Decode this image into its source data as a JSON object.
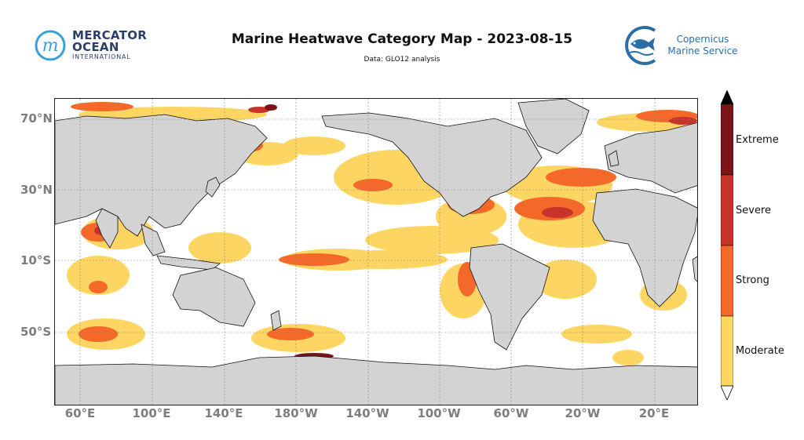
{
  "header": {
    "title": "Marine Heatwave Category Map - 2023-08-15",
    "subtitle": "Data: GLO12 analysis"
  },
  "logos": {
    "mercator": {
      "line1": "MERCATOR",
      "line2": "OCEAN",
      "line3": "INTERNATIONAL",
      "mark": "m",
      "color": "#2c3f6b",
      "accent": "#3aa0d8"
    },
    "copernicus": {
      "line1": "Copernicus",
      "line2": "Marine Service",
      "color": "#2b6ea6",
      "icon": "fish-icon"
    }
  },
  "map": {
    "land_color": "#d3d3d3",
    "ocean_color": "#ffffff",
    "grid": true,
    "lat_labels": [
      "70°N",
      "30°N",
      "10°S",
      "50°S"
    ],
    "lon_labels": [
      "60°E",
      "100°E",
      "140°E",
      "180°W",
      "140°W",
      "100°W",
      "60°W",
      "20°W",
      "20°E"
    ]
  },
  "legend": {
    "categories": [
      {
        "label": "Extreme",
        "color": "#7a1417"
      },
      {
        "label": "Severe",
        "color": "#c7322a"
      },
      {
        "label": "Strong",
        "color": "#f4692a"
      },
      {
        "label": "Moderate",
        "color": "#fdd562"
      }
    ],
    "over_color": "#000000",
    "under_color": "#ffffff"
  }
}
